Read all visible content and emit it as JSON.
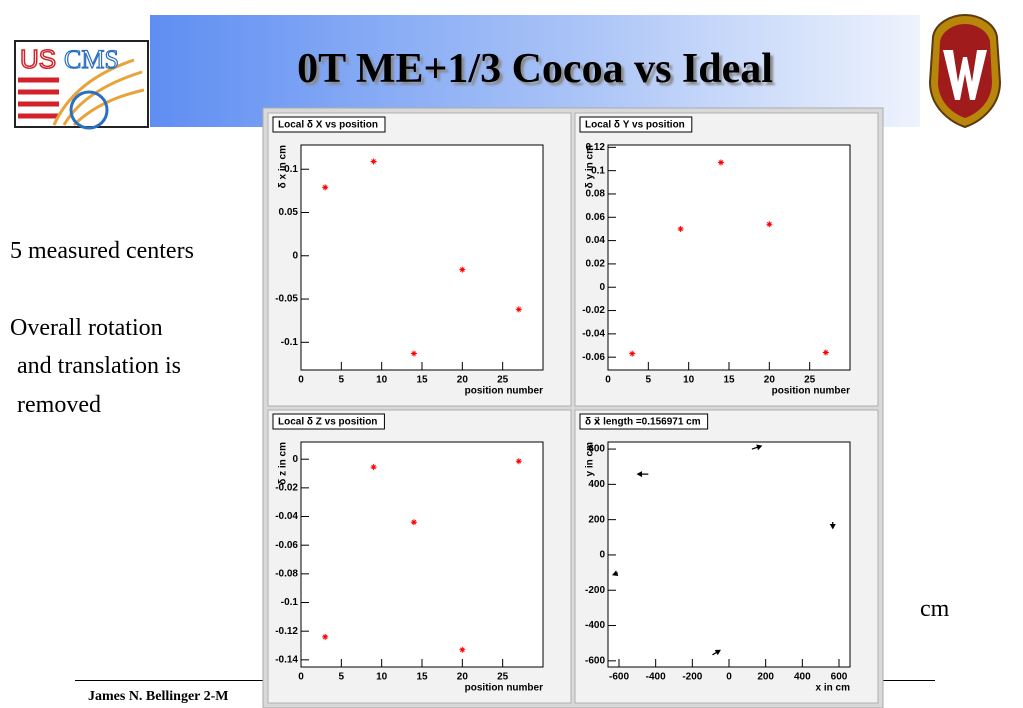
{
  "slide": {
    "title": "0T ME+1/3 Cocoa vs Ideal",
    "logo_text": [
      "US",
      "CMS"
    ],
    "notes": [
      "5 measured centers",
      "Overall rotation",
      "and translation is",
      "removed"
    ],
    "side_label": "cm",
    "footer": "James N. Bellinger 2-M"
  },
  "chart_data": [
    {
      "type": "scatter",
      "title": "Local δ X vs position",
      "xlabel": "position number",
      "ylabel": "δ x in cm",
      "x": [
        3,
        9,
        14,
        20,
        27
      ],
      "values": [
        0.079,
        0.109,
        -0.113,
        -0.016,
        -0.062
      ],
      "color": "#ff0000",
      "xlim": [
        0,
        30
      ],
      "ylim": [
        -0.132,
        0.128
      ],
      "xticks": [
        0,
        5,
        10,
        15,
        20,
        25
      ],
      "yticks": [
        -0.1,
        -0.05,
        0,
        0.05,
        0.1
      ]
    },
    {
      "type": "scatter",
      "title": "Local δ Y vs position",
      "xlabel": "position number",
      "ylabel": "δ y in cm",
      "x": [
        3,
        9,
        14,
        20,
        27
      ],
      "values": [
        -0.057,
        0.05,
        0.107,
        0.054,
        -0.056
      ],
      "color": "#ff0000",
      "xlim": [
        0,
        30
      ],
      "ylim": [
        -0.071,
        0.122
      ],
      "xticks": [
        0,
        5,
        10,
        15,
        20,
        25
      ],
      "yticks": [
        -0.06,
        -0.04,
        -0.02,
        0,
        0.02,
        0.04,
        0.06,
        0.08,
        0.1,
        0.12
      ]
    },
    {
      "type": "scatter",
      "title": "Local δ Z vs position",
      "xlabel": "position number",
      "ylabel": "δ z in cm",
      "x": [
        3,
        9,
        14,
        20,
        27
      ],
      "values": [
        -0.124,
        -0.0055,
        -0.044,
        -0.133,
        -0.0014
      ],
      "color": "#ff0000",
      "xlim": [
        0,
        30
      ],
      "ylim": [
        -0.145,
        0.012
      ],
      "xticks": [
        0,
        5,
        10,
        15,
        20,
        25
      ],
      "yticks": [
        -0.14,
        -0.12,
        -0.1,
        -0.08,
        -0.06,
        -0.04,
        -0.02,
        0
      ]
    },
    {
      "type": "quiver",
      "title": "δ x⃗   length =0.156971 cm",
      "xlabel": "x in cm",
      "ylabel": "y in cm",
      "x": [
        125,
        -440,
        566,
        -606,
        -90
      ],
      "values": [
        600,
        458,
        187,
        -102,
        -566
      ],
      "dx": [
        50,
        -57,
        0,
        -25,
        40
      ],
      "dy": [
        17,
        0,
        -35,
        -10,
        25
      ],
      "color": "#000000",
      "xlim": [
        -660,
        660
      ],
      "ylim": [
        -635,
        640
      ],
      "xticks": [
        -600,
        -400,
        -200,
        0,
        200,
        400,
        600
      ],
      "yticks": [
        -600,
        -400,
        -200,
        0,
        200,
        400,
        600
      ]
    }
  ]
}
